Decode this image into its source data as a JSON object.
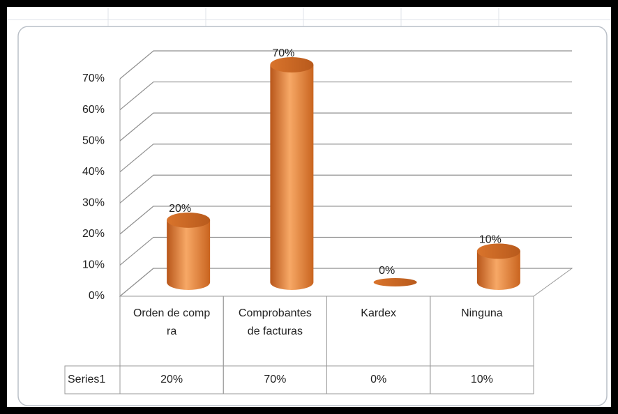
{
  "chart_data": {
    "type": "cylinder",
    "categories": [
      "Orden de compra",
      "Comprobantes de facturas",
      "Kardex",
      "Ninguna"
    ],
    "series": [
      {
        "name": "Series1",
        "color": "#e8863a",
        "values": [
          20,
          70,
          0,
          10
        ],
        "value_labels": [
          "20%",
          "70%",
          "0%",
          "10%"
        ]
      }
    ],
    "ylim": [
      0,
      70
    ],
    "yticks": [
      {
        "value": 0,
        "label": "0%"
      },
      {
        "value": 10,
        "label": "10%"
      },
      {
        "value": 20,
        "label": "20%"
      },
      {
        "value": 30,
        "label": "30%"
      },
      {
        "value": 40,
        "label": "40%"
      },
      {
        "value": 50,
        "label": "50%"
      },
      {
        "value": 60,
        "label": "60%"
      },
      {
        "value": 70,
        "label": "70%"
      }
    ],
    "grid": true,
    "data_table": true
  }
}
